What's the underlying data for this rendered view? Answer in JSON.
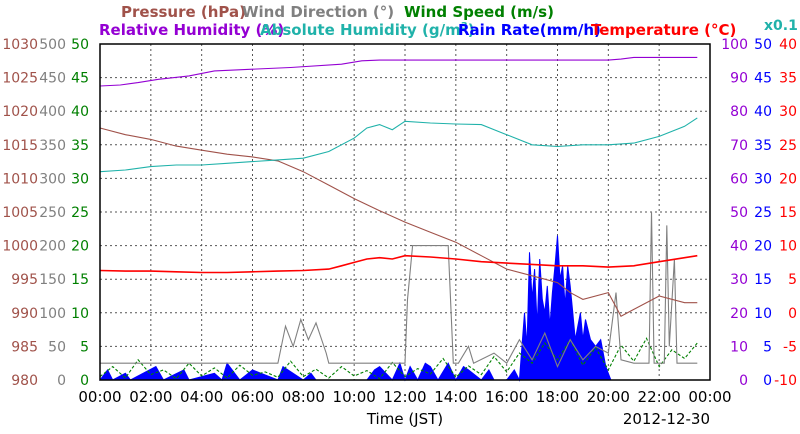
{
  "chart_data": {
    "type": "line",
    "title_row1": [
      {
        "text": "Pressure (hPa)",
        "color": "#a0524a"
      },
      {
        "text": "Wind Direction (°)",
        "color": "#808080"
      },
      {
        "text": "Wind Speed (m/s)",
        "color": "#008000"
      }
    ],
    "title_row2": [
      {
        "text": "Relative Humidity (%)",
        "color": "#9400d3"
      },
      {
        "text": "Absolute Humidity (g/m",
        "sup": "3",
        "close": ")",
        "color": "#20b2aa"
      },
      {
        "text": "Rain Rate(mm/h)",
        "color": "#0000ff"
      },
      {
        "text": "Temperature (°C)",
        "color": "#ff0000"
      }
    ],
    "abs_humidity_multiplier": "x0.1",
    "xlabel": "Time (JST)",
    "date": "2012-12-30",
    "x_ticks": [
      "00:00",
      "02:00",
      "04:00",
      "06:00",
      "08:00",
      "10:00",
      "12:00",
      "14:00",
      "16:00",
      "18:00",
      "20:00",
      "22:00",
      "00:00"
    ],
    "x_range_hours": [
      0,
      24
    ],
    "grid": true,
    "axes": {
      "pressure": {
        "ticks": [
          980,
          985,
          990,
          995,
          1000,
          1005,
          1010,
          1015,
          1020,
          1025,
          1030
        ],
        "color": "#a0524a"
      },
      "wind_direction": {
        "ticks": [
          0,
          50,
          100,
          150,
          200,
          250,
          300,
          350,
          400,
          450,
          500
        ],
        "color": "#808080"
      },
      "wind_speed": {
        "ticks": [
          0,
          5,
          10,
          15,
          20,
          25,
          30,
          35,
          40,
          45,
          50
        ],
        "color": "#008000"
      },
      "humidity": {
        "ticks": [
          0,
          10,
          20,
          30,
          40,
          50,
          60,
          70,
          80,
          90,
          100
        ],
        "color": "#9400d3"
      },
      "rain_rate": {
        "ticks": [
          0,
          5,
          10,
          15,
          20,
          25,
          30,
          35,
          40,
          45,
          50
        ],
        "color": "#0000ff"
      },
      "temperature": {
        "ticks": [
          -10,
          -5,
          0,
          5,
          10,
          15,
          20,
          25,
          30,
          35,
          40
        ],
        "color": "#ff0000"
      }
    },
    "series": [
      {
        "name": "Pressure",
        "axis": "pressure",
        "color": "#a0524a",
        "x": [
          0,
          1,
          2,
          3,
          4,
          5,
          6,
          7,
          8,
          9,
          10,
          11,
          12,
          13,
          14,
          15,
          16,
          17,
          17.5,
          18,
          18.5,
          19,
          20,
          20.5,
          21,
          22,
          23,
          23.5
        ],
        "y": [
          1017.5,
          1016.5,
          1015.8,
          1014.8,
          1014.2,
          1013.6,
          1013.2,
          1012.6,
          1011.0,
          1009.0,
          1007.0,
          1005.2,
          1003.5,
          1002.0,
          1000.5,
          998.5,
          996.5,
          995.5,
          995.0,
          994.5,
          993.0,
          992.0,
          993.0,
          989.5,
          990.5,
          992.5,
          991.5,
          991.5
        ]
      },
      {
        "name": "Wind Direction",
        "axis": "wind_direction",
        "color": "#808080",
        "x": [
          0,
          7,
          7.3,
          7.6,
          7.9,
          8.2,
          8.5,
          8.9,
          9.0,
          12,
          12.1,
          12.3,
          13.7,
          13.9,
          14.1,
          14.5,
          14.7,
          15.5,
          16.0,
          16.5,
          17,
          17.5,
          18,
          18.5,
          19,
          19.5,
          20,
          20.3,
          20.5,
          21,
          21.6,
          21.7,
          21.8,
          21.9,
          22.2,
          22.3,
          22.4,
          22.6,
          22.7,
          22.9,
          23.2,
          23.5
        ],
        "y": [
          25,
          25,
          80,
          50,
          90,
          60,
          85,
          40,
          25,
          25,
          120,
          200,
          200,
          25,
          25,
          50,
          25,
          40,
          25,
          60,
          30,
          70,
          20,
          60,
          30,
          50,
          40,
          130,
          30,
          25,
          25,
          250,
          25,
          25,
          25,
          230,
          50,
          180,
          25,
          25,
          25,
          25
        ]
      },
      {
        "name": "Wind Speed",
        "axis": "wind_speed",
        "color": "#008000",
        "x": [
          0,
          0.5,
          1,
          1.5,
          2,
          2.5,
          3,
          3.5,
          4,
          4.5,
          5,
          5.5,
          6,
          6.5,
          7,
          7.5,
          8,
          8.5,
          9,
          9.5,
          10,
          10.5,
          11,
          11.5,
          12,
          12.5,
          13,
          13.5,
          14,
          14.5,
          15,
          15.5,
          16,
          16.5,
          17,
          17.5,
          18,
          18.5,
          19,
          19.5,
          20,
          20.5,
          21,
          21.5,
          22,
          22.5,
          23,
          23.5
        ],
        "y": [
          0.5,
          2,
          0.3,
          3,
          0.8,
          1.5,
          0.2,
          2.5,
          0.6,
          1.8,
          0.3,
          2.2,
          0.7,
          1.2,
          0.4,
          2.8,
          0.5,
          1.6,
          0.3,
          2,
          0.6,
          1.4,
          0.2,
          2.6,
          0.5,
          1.7,
          0.9,
          3.2,
          0.4,
          2.1,
          0.8,
          3.5,
          1.2,
          4,
          2.5,
          5.5,
          3,
          6,
          2.2,
          4.8,
          1.5,
          5.2,
          2.8,
          6.2,
          2,
          4.5,
          3.2,
          5.5
        ]
      },
      {
        "name": "Relative Humidity",
        "axis": "humidity",
        "color": "#9400d3",
        "x": [
          0,
          0.8,
          1.5,
          2.3,
          3.5,
          4.5,
          6,
          7.5,
          9.5,
          10.3,
          11,
          13,
          16,
          18,
          20,
          20.5,
          21,
          22,
          23.5
        ],
        "y": [
          87.5,
          87.8,
          88.5,
          89.5,
          90.5,
          92,
          92.5,
          93,
          94,
          95,
          95.2,
          95.2,
          95.2,
          95.2,
          95.2,
          95.5,
          96,
          96,
          96
        ]
      },
      {
        "name": "Absolute Humidity",
        "axis": "humidity",
        "color": "#20b2aa",
        "x": [
          0,
          1,
          2,
          3,
          4,
          5,
          6,
          7,
          8,
          9,
          10,
          10.5,
          11,
          11.5,
          12,
          13,
          14,
          15,
          16,
          17,
          18,
          19,
          20,
          21,
          22,
          23,
          23.5
        ],
        "y": [
          62,
          62.5,
          63.5,
          64,
          64,
          64.5,
          65,
          65.5,
          66,
          68,
          72,
          75,
          76,
          74.5,
          77,
          76.5,
          76.2,
          76,
          73,
          70,
          69.5,
          70,
          70,
          70.5,
          72.5,
          75.5,
          78
        ]
      },
      {
        "name": "Temperature",
        "axis": "temperature",
        "color": "#ff0000",
        "x": [
          0,
          1,
          2,
          3,
          4,
          5,
          6,
          7,
          8,
          9,
          9.5,
          10,
          10.5,
          11,
          11.5,
          12,
          13,
          14,
          15,
          16,
          17,
          18,
          19,
          20,
          21,
          22,
          23,
          23.5
        ],
        "y": [
          6.3,
          6.2,
          6.2,
          6.1,
          6.0,
          6.0,
          6.1,
          6.2,
          6.3,
          6.5,
          7.0,
          7.5,
          8.0,
          8.2,
          8.0,
          8.5,
          8.3,
          8.0,
          7.6,
          7.4,
          7.2,
          7.0,
          7.0,
          6.8,
          7.0,
          7.6,
          8.2,
          8.5
        ]
      },
      {
        "name": "Rain Rate",
        "axis": "rain_rate",
        "color": "#0000ff",
        "x": [
          0,
          0.3,
          0.5,
          1,
          1.2,
          2.2,
          2.5,
          3.3,
          3.5,
          4.5,
          4.8,
          5,
          5.5,
          6,
          7,
          7.2,
          8,
          8.3,
          8.5,
          9,
          10.5,
          10.8,
          11,
          11.5,
          11.8,
          12,
          12.2,
          12.5,
          12.8,
          13,
          13.3,
          13.7,
          14,
          14.3,
          14.5,
          15,
          15.3,
          15.5,
          16,
          16.3,
          16.5,
          16.7,
          16.8,
          16.9,
          17,
          17.1,
          17.2,
          17.3,
          17.4,
          17.5,
          17.6,
          17.7,
          17.8,
          17.9,
          18,
          18.1,
          18.2,
          18.3,
          18.4,
          18.5,
          18.6,
          18.7,
          18.8,
          18.9,
          19,
          19.1,
          19.3,
          19.5,
          19.7,
          19.9,
          20,
          20.1
        ],
        "y": [
          0,
          1.5,
          0,
          1,
          0,
          2,
          0,
          1.5,
          0,
          1,
          0,
          2.5,
          0,
          1.5,
          0,
          2,
          0,
          1,
          0,
          0,
          0,
          1.5,
          2,
          0,
          2.5,
          0,
          2,
          0,
          2.5,
          2,
          0,
          2.5,
          0,
          2,
          1.5,
          0,
          1.5,
          0,
          0,
          1.5,
          0,
          10,
          5,
          19,
          12,
          16.5,
          8,
          18,
          12,
          10,
          14,
          8,
          13,
          17,
          21.5,
          15,
          17,
          11,
          17,
          14,
          10,
          6,
          8,
          10,
          6,
          9,
          6,
          5,
          6,
          2,
          1,
          0
        ]
      }
    ]
  }
}
